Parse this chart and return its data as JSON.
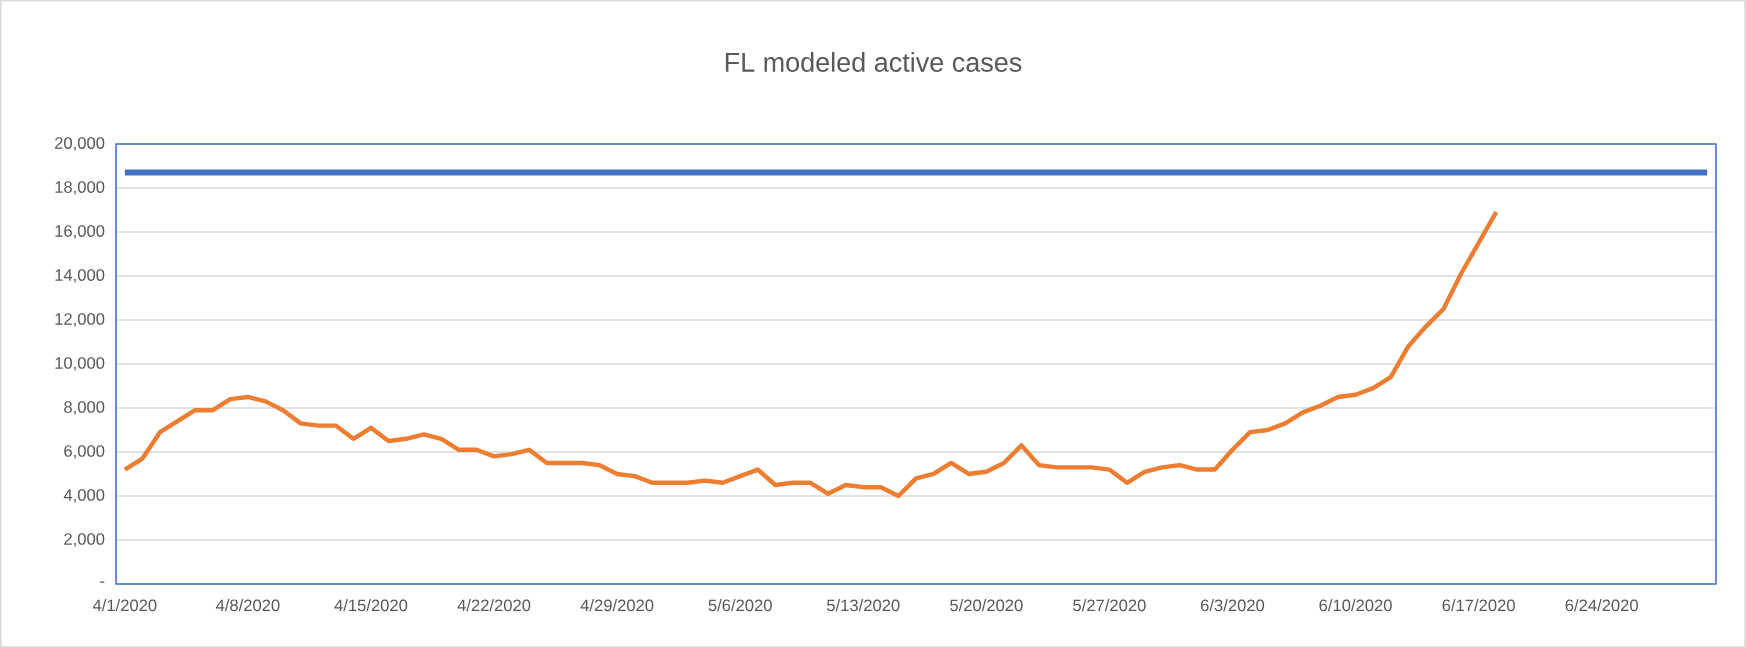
{
  "chart_data": {
    "type": "line",
    "title": "FL modeled active cases",
    "xlim": [
      "2020-03-31T12:00",
      "2020-06-30T12:00"
    ],
    "xticks": [
      {
        "value": "2020-04-01",
        "label": "4/1/2020"
      },
      {
        "value": "2020-04-08",
        "label": "4/8/2020"
      },
      {
        "value": "2020-04-15",
        "label": "4/15/2020"
      },
      {
        "value": "2020-04-22",
        "label": "4/22/2020"
      },
      {
        "value": "2020-04-29",
        "label": "4/29/2020"
      },
      {
        "value": "2020-05-06",
        "label": "5/6/2020"
      },
      {
        "value": "2020-05-13",
        "label": "5/13/2020"
      },
      {
        "value": "2020-05-20",
        "label": "5/20/2020"
      },
      {
        "value": "2020-05-27",
        "label": "5/27/2020"
      },
      {
        "value": "2020-06-03",
        "label": "6/3/2020"
      },
      {
        "value": "2020-06-10",
        "label": "6/10/2020"
      },
      {
        "value": "2020-06-17",
        "label": "6/17/2020"
      },
      {
        "value": "2020-06-24",
        "label": "6/24/2020"
      }
    ],
    "ylim": [
      0,
      20000
    ],
    "yticks": [
      {
        "value": 0,
        "label": "-"
      },
      {
        "value": 2000,
        "label": "2,000"
      },
      {
        "value": 4000,
        "label": "4,000"
      },
      {
        "value": 6000,
        "label": "6,000"
      },
      {
        "value": 8000,
        "label": "8,000"
      },
      {
        "value": 10000,
        "label": "10,000"
      },
      {
        "value": 12000,
        "label": "12,000"
      },
      {
        "value": 14000,
        "label": "14,000"
      },
      {
        "value": 16000,
        "label": "16,000"
      },
      {
        "value": 18000,
        "label": "18,000"
      },
      {
        "value": 20000,
        "label": "20,000"
      }
    ],
    "grid": "y",
    "marker": "none",
    "line_style": "solid",
    "series": [
      {
        "color": "#4472c4",
        "x": [
          "2020-04-01",
          "2020-06-30"
        ],
        "values": [
          18700,
          18700
        ]
      },
      {
        "color": "#ed7d31",
        "x": [
          "2020-04-01",
          "2020-04-02",
          "2020-04-03",
          "2020-04-04",
          "2020-04-05",
          "2020-04-06",
          "2020-04-07",
          "2020-04-08",
          "2020-04-09",
          "2020-04-10",
          "2020-04-11",
          "2020-04-12",
          "2020-04-13",
          "2020-04-14",
          "2020-04-15",
          "2020-04-16",
          "2020-04-17",
          "2020-04-18",
          "2020-04-19",
          "2020-04-20",
          "2020-04-21",
          "2020-04-22",
          "2020-04-23",
          "2020-04-24",
          "2020-04-25",
          "2020-04-26",
          "2020-04-27",
          "2020-04-28",
          "2020-04-29",
          "2020-04-30",
          "2020-05-01",
          "2020-05-02",
          "2020-05-03",
          "2020-05-04",
          "2020-05-05",
          "2020-05-06",
          "2020-05-07",
          "2020-05-08",
          "2020-05-09",
          "2020-05-10",
          "2020-05-11",
          "2020-05-12",
          "2020-05-13",
          "2020-05-14",
          "2020-05-15",
          "2020-05-16",
          "2020-05-17",
          "2020-05-18",
          "2020-05-19",
          "2020-05-20",
          "2020-05-21",
          "2020-05-22",
          "2020-05-23",
          "2020-05-24",
          "2020-05-25",
          "2020-05-26",
          "2020-05-27",
          "2020-05-28",
          "2020-05-29",
          "2020-05-30",
          "2020-05-31",
          "2020-06-01",
          "2020-06-02",
          "2020-06-03",
          "2020-06-04",
          "2020-06-05",
          "2020-06-06",
          "2020-06-07",
          "2020-06-08",
          "2020-06-09",
          "2020-06-10",
          "2020-06-11",
          "2020-06-12",
          "2020-06-13",
          "2020-06-14",
          "2020-06-15",
          "2020-06-16",
          "2020-06-17",
          "2020-06-18"
        ],
        "values": [
          5200,
          5700,
          6900,
          7400,
          7900,
          7900,
          8400,
          8500,
          8300,
          7900,
          7300,
          7200,
          7200,
          6600,
          7100,
          6500,
          6600,
          6800,
          6600,
          6100,
          6100,
          5800,
          5900,
          6100,
          5500,
          5500,
          5500,
          5400,
          5000,
          4900,
          4600,
          4600,
          4600,
          4700,
          4600,
          4900,
          5200,
          4500,
          4600,
          4600,
          4100,
          4500,
          4400,
          4400,
          4000,
          4800,
          5000,
          5500,
          5000,
          5100,
          5500,
          6300,
          5400,
          5300,
          5300,
          5300,
          5200,
          4600,
          5100,
          5300,
          5400,
          5200,
          5200,
          6100,
          6900,
          7000,
          7300,
          7800,
          8100,
          8500,
          8600,
          8900,
          9400,
          10800,
          11700,
          12500,
          14100,
          15500,
          16900
        ]
      }
    ]
  }
}
